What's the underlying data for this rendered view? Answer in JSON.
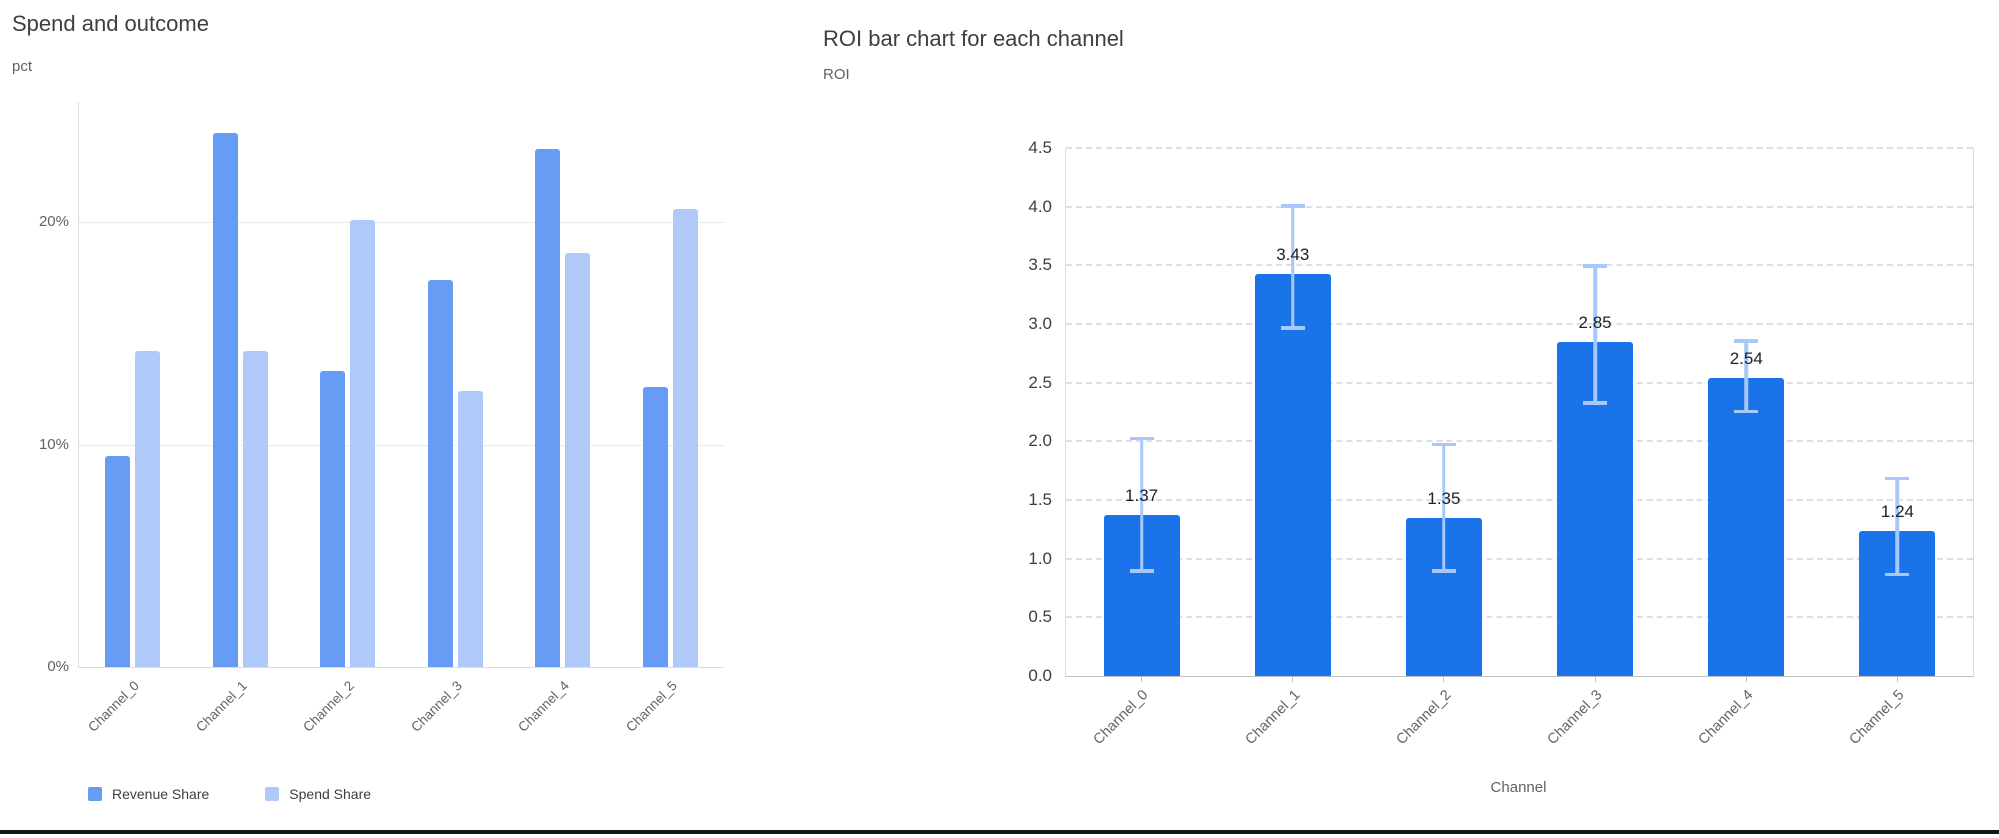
{
  "chart_data": [
    {
      "type": "bar",
      "title": "Spend and outcome",
      "value_axis_label": "pct",
      "xlabel": "",
      "categories": [
        "Channel_0",
        "Channel_1",
        "Channel_2",
        "Channel_3",
        "Channel_4",
        "Channel_5"
      ],
      "series": [
        {
          "name": "Revenue Share",
          "color": "#669CF3",
          "values": [
            9.5,
            24.0,
            13.3,
            17.4,
            23.3,
            12.6
          ]
        },
        {
          "name": "Spend Share",
          "color": "#AFCAF8",
          "values": [
            14.2,
            14.2,
            20.1,
            12.4,
            18.6,
            20.6
          ]
        }
      ],
      "unit": "%",
      "ylim": [
        0,
        25.4
      ],
      "yticks": [
        {
          "value": 0,
          "label": "0%"
        },
        {
          "value": 10,
          "label": "10%"
        },
        {
          "value": 20,
          "label": "20%"
        }
      ],
      "grid": "horizontal-solid",
      "legend_position": "bottom-left"
    },
    {
      "type": "bar",
      "title": "ROI bar chart for each channel",
      "value_axis_label": "ROI",
      "xlabel": "Channel",
      "categories": [
        "Channel_0",
        "Channel_1",
        "Channel_2",
        "Channel_3",
        "Channel_4",
        "Channel_5"
      ],
      "values": [
        1.37,
        3.43,
        1.35,
        2.85,
        2.54,
        1.24
      ],
      "value_labels": [
        "1.37",
        "3.43",
        "1.35",
        "2.85",
        "2.54",
        "1.24"
      ],
      "error_low": [
        0.88,
        2.95,
        0.88,
        2.31,
        2.24,
        0.85
      ],
      "error_high": [
        2.04,
        4.02,
        1.99,
        3.51,
        2.87,
        1.7
      ],
      "bar_color": "#1A73E8",
      "error_bar_color": "#A8C7FA",
      "ylim": [
        0,
        4.5
      ],
      "ytick_step": 0.5,
      "grid": "horizontal-dashed",
      "legend_position": "none"
    }
  ],
  "page": {
    "bottom_divider_color": "#161616"
  }
}
